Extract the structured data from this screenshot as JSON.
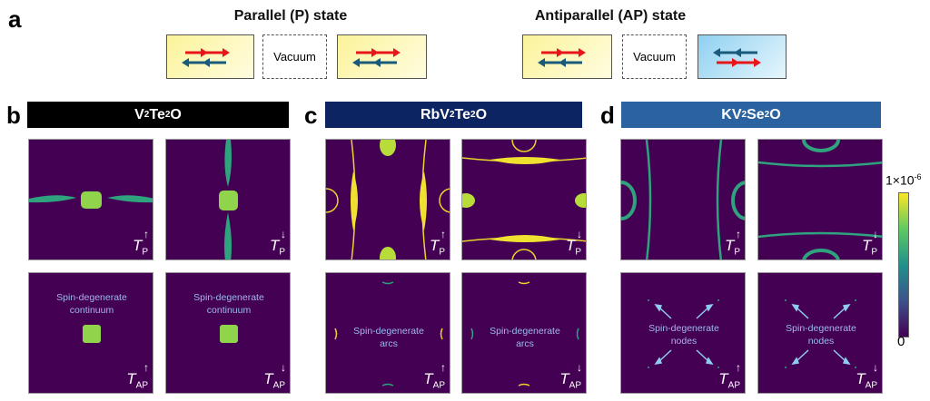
{
  "panel_labels": {
    "a": "a",
    "b": "b",
    "c": "c",
    "d": "d"
  },
  "states": {
    "parallel": {
      "title": "Parallel (P) state",
      "vacuum": "Vacuum"
    },
    "antiparallel": {
      "title": "Antiparallel (AP) state",
      "vacuum": "Vacuum"
    }
  },
  "materials": [
    {
      "name": "V",
      "s1": "2",
      "mid": "Te",
      "s2": "2",
      "end": "O",
      "color": "#000000"
    },
    {
      "name": "RbV",
      "s1": "2",
      "mid": "Te",
      "s2": "2",
      "end": "O",
      "color": "#0c2461"
    },
    {
      "name": "KV",
      "s1": "2",
      "mid": "Se",
      "s2": "2",
      "end": "O",
      "color": "#2a63a0"
    }
  ],
  "transmission_labels": {
    "T": "T",
    "P": "P",
    "AP": "AP",
    "up": "↑",
    "down": "↓"
  },
  "notes": {
    "continuum": [
      "Spin-degenerate",
      "continuum"
    ],
    "arcs": [
      "Spin-degenerate",
      "arcs"
    ],
    "nodes": [
      "Spin-degenerate",
      "nodes"
    ]
  },
  "colorbar": {
    "max_base": "1×10",
    "max_exp": "-6",
    "min": "0",
    "colors": [
      "#440154",
      "#3b528b",
      "#21918c",
      "#5ec962",
      "#fde725"
    ]
  }
}
